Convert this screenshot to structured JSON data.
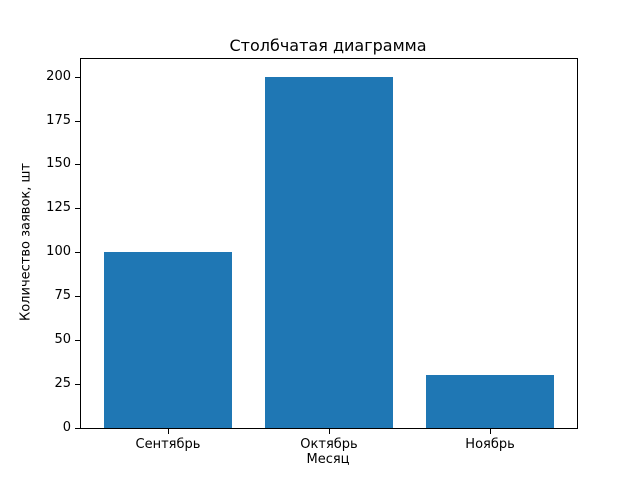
{
  "chart_data": {
    "type": "bar",
    "title": "Столбчатая диаграмма",
    "xlabel": "Месяц",
    "ylabel": "Количество заявок, шт",
    "categories": [
      "Сентябрь",
      "Октябрь",
      "Ноябрь"
    ],
    "values": [
      100,
      200,
      30
    ],
    "yticks": [
      0,
      25,
      50,
      75,
      100,
      125,
      150,
      175,
      200
    ],
    "ylim": [
      0,
      210
    ],
    "bar_color": "#1f77b4",
    "grid": false,
    "legend": null,
    "background_color": "#ffffff",
    "axis_color": "#000000"
  }
}
